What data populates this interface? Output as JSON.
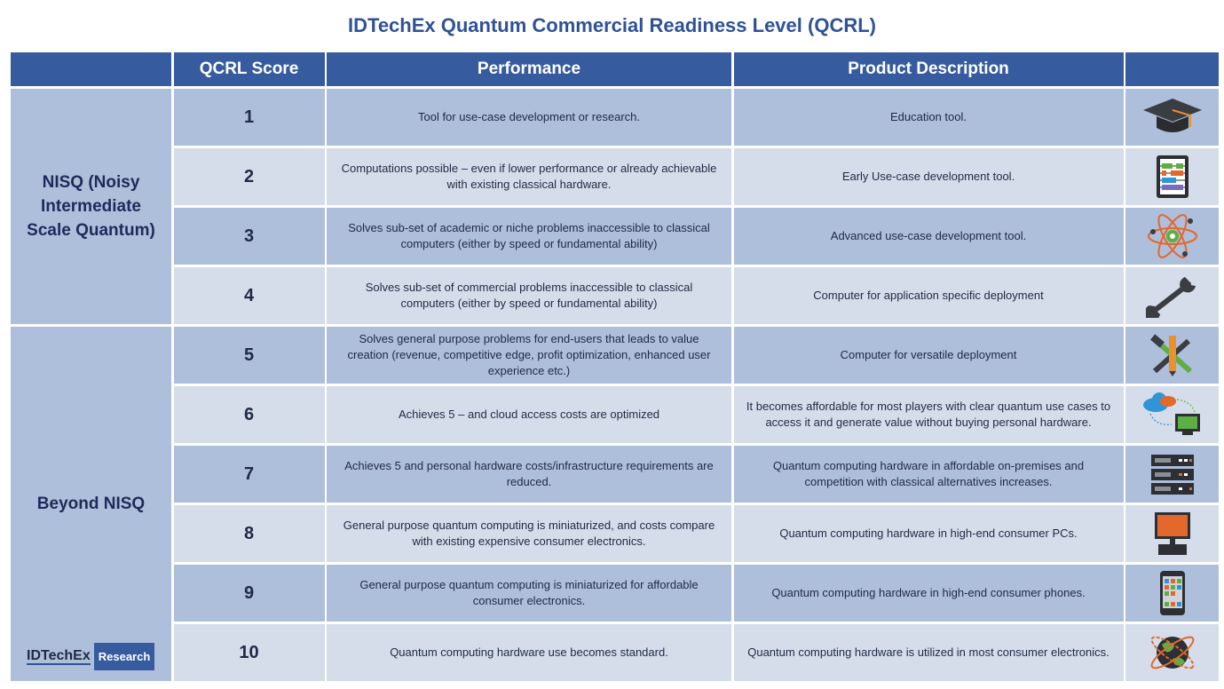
{
  "title": "IDTechEx Quantum Commercial Readiness Level (QCRL)",
  "headers": [
    "",
    "QCRL Score",
    "Performance",
    "Product Description",
    ""
  ],
  "groups": [
    {
      "label": "NISQ (Noisy Intermediate Scale Quantum)",
      "rows": [
        1,
        2,
        3,
        4
      ]
    },
    {
      "label": "Beyond NISQ",
      "rows": [
        5,
        6,
        7,
        8,
        9,
        10
      ]
    }
  ],
  "rows": [
    {
      "score": "1",
      "performance": "Tool for use-case development or research.",
      "description": "Education tool.",
      "icon": "graduation-cap-icon"
    },
    {
      "score": "2",
      "performance": "Computations possible – even if lower performance or already achievable with existing classical hardware.",
      "description": "Early Use-case development tool.",
      "icon": "abacus-icon"
    },
    {
      "score": "3",
      "performance": "Solves sub-set of academic or niche problems inaccessible to classical computers (either by speed or fundamental ability)",
      "description": "Advanced use-case development tool.",
      "icon": "atom-icon"
    },
    {
      "score": "4",
      "performance": "Solves sub-set of commercial problems inaccessible to classical computers (either by speed or fundamental ability)",
      "description": "Computer for application specific deployment",
      "icon": "wrench-icon"
    },
    {
      "score": "5",
      "performance": "Solves general purpose problems for end-users that leads to value creation (revenue, competitive edge, profit optimization, enhanced user experience etc.)",
      "description": "Computer for versatile deployment",
      "icon": "tools-icon"
    },
    {
      "score": "6",
      "performance": "Achieves 5 – and cloud access costs are optimized",
      "description": "It becomes affordable for most players with clear quantum use cases to access it and generate value without buying personal hardware.",
      "icon": "cloud-computer-icon"
    },
    {
      "score": "7",
      "performance": "Achieves 5 and personal hardware costs/infrastructure requirements are reduced.",
      "description": "Quantum computing hardware in affordable on-premises and competition with classical alternatives increases.",
      "icon": "server-rack-icon"
    },
    {
      "score": "8",
      "performance": "General purpose quantum computing is miniaturized, and costs compare with existing expensive consumer electronics.",
      "description": "Quantum computing hardware in high-end consumer PCs.",
      "icon": "desktop-pc-icon"
    },
    {
      "score": "9",
      "performance": "General purpose quantum computing is miniaturized for affordable consumer electronics.",
      "description": "Quantum computing hardware in high-end consumer phones.",
      "icon": "smartphone-icon"
    },
    {
      "score": "10",
      "performance": "Quantum computing hardware use becomes standard.",
      "description": "Quantum computing hardware is utilized in most consumer electronics.",
      "icon": "globe-orbit-icon"
    }
  ],
  "logo": {
    "brand": "IDTechEx",
    "tag": "Research"
  },
  "colors": {
    "header": "#365b9f",
    "title": "#2f5296",
    "row_dark": "#adbfdb",
    "row_light": "#d5ddea"
  }
}
